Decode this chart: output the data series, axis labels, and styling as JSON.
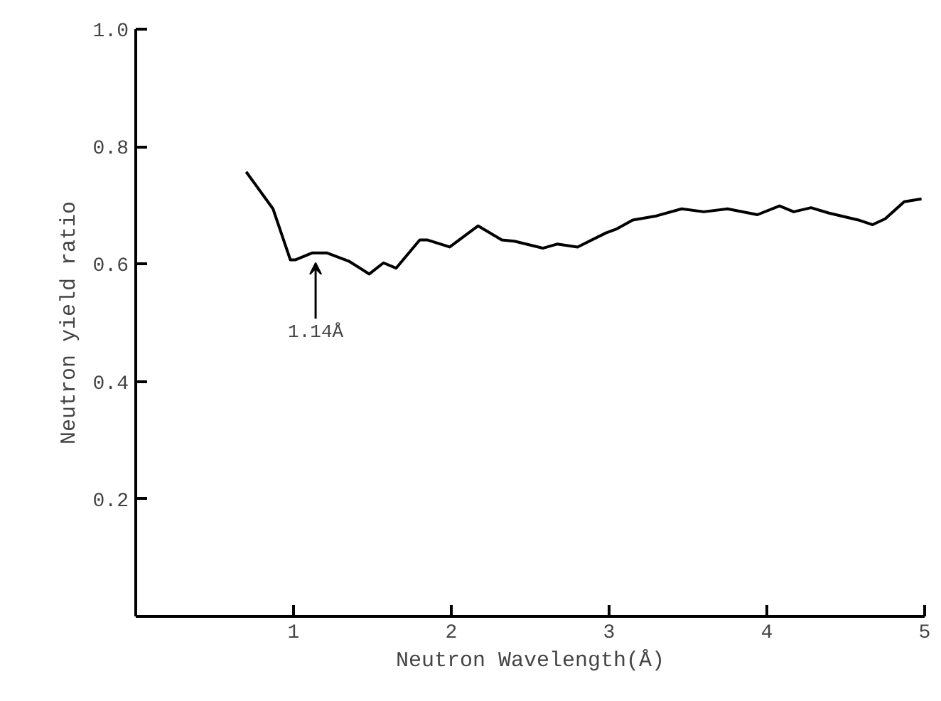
{
  "chart_data": {
    "type": "line",
    "xlabel": "Neutron Wavelength(Å)",
    "ylabel": "Neutron yield ratio",
    "x": [
      0.7,
      0.87,
      0.98,
      1.01,
      1.12,
      1.21,
      1.35,
      1.48,
      1.57,
      1.65,
      1.8,
      1.85,
      1.99,
      2.17,
      2.32,
      2.4,
      2.58,
      2.67,
      2.8,
      2.98,
      3.05,
      3.15,
      3.3,
      3.46,
      3.6,
      3.75,
      3.94,
      4.08,
      4.17,
      4.28,
      4.39,
      4.58,
      4.67,
      4.75,
      4.87,
      4.98
    ],
    "series": [
      {
        "color": "#000000",
        "values": [
          0.757,
          0.694,
          0.607,
          0.607,
          0.619,
          0.619,
          0.605,
          0.583,
          0.602,
          0.593,
          0.641,
          0.641,
          0.629,
          0.665,
          0.641,
          0.639,
          0.627,
          0.634,
          0.629,
          0.653,
          0.66,
          0.675,
          0.682,
          0.694,
          0.689,
          0.694,
          0.684,
          0.699,
          0.689,
          0.696,
          0.687,
          0.675,
          0.667,
          0.677,
          0.706,
          0.711
        ]
      }
    ],
    "xlim": [
      0,
      5
    ],
    "ylim": [
      0,
      1.0
    ],
    "xticks": [
      1,
      2,
      3,
      4,
      5
    ],
    "yticks": [
      0.2,
      0.4,
      0.6,
      0.8,
      {
        "value": 1.0,
        "label": "1.0"
      }
    ],
    "annotations": [
      {
        "text": "1.14Å",
        "x": 1.14,
        "y": 0.617
      }
    ],
    "grid": false,
    "marker": "none",
    "line_style": "solid"
  }
}
